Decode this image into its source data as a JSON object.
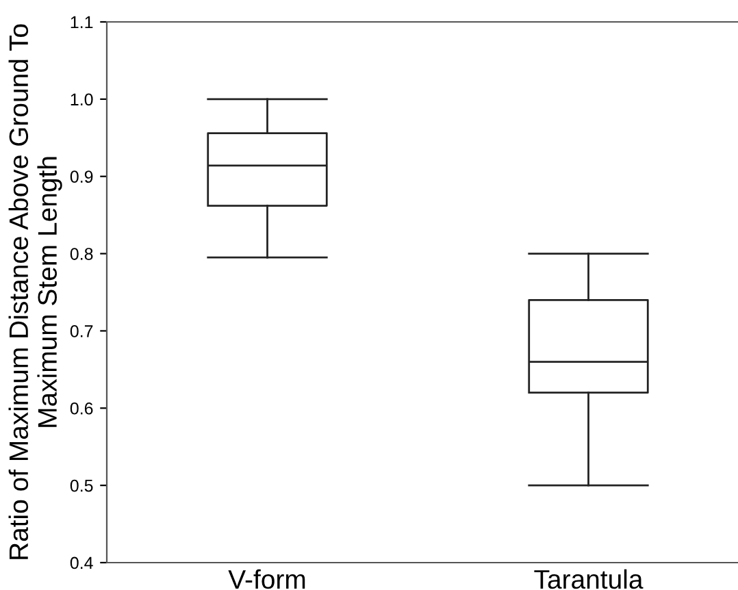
{
  "chart_data": {
    "type": "box",
    "ylabel": "Ratio of Maximum Distance Above Ground To\nMaximum Stem Length",
    "categories": [
      "V-form",
      "Tarantula"
    ],
    "boxes": [
      {
        "low": 0.795,
        "q1": 0.862,
        "median": 0.914,
        "q3": 0.956,
        "high": 1.0
      },
      {
        "low": 0.5,
        "q1": 0.62,
        "median": 0.66,
        "q3": 0.74,
        "high": 0.8
      }
    ],
    "ylim": [
      0.4,
      1.1
    ],
    "yticks": [
      {
        "value": 0.4,
        "label": "0.4"
      },
      {
        "value": 0.5,
        "label": "0.5"
      },
      {
        "value": 0.6,
        "label": "0.6"
      },
      {
        "value": 0.7,
        "label": "0.7"
      },
      {
        "value": 0.8,
        "label": "0.8"
      },
      {
        "value": 0.9,
        "label": "0.9"
      },
      {
        "value": 1.0,
        "label": "1.0"
      },
      {
        "value": 1.1,
        "label": "1.1"
      }
    ],
    "grid": false
  }
}
